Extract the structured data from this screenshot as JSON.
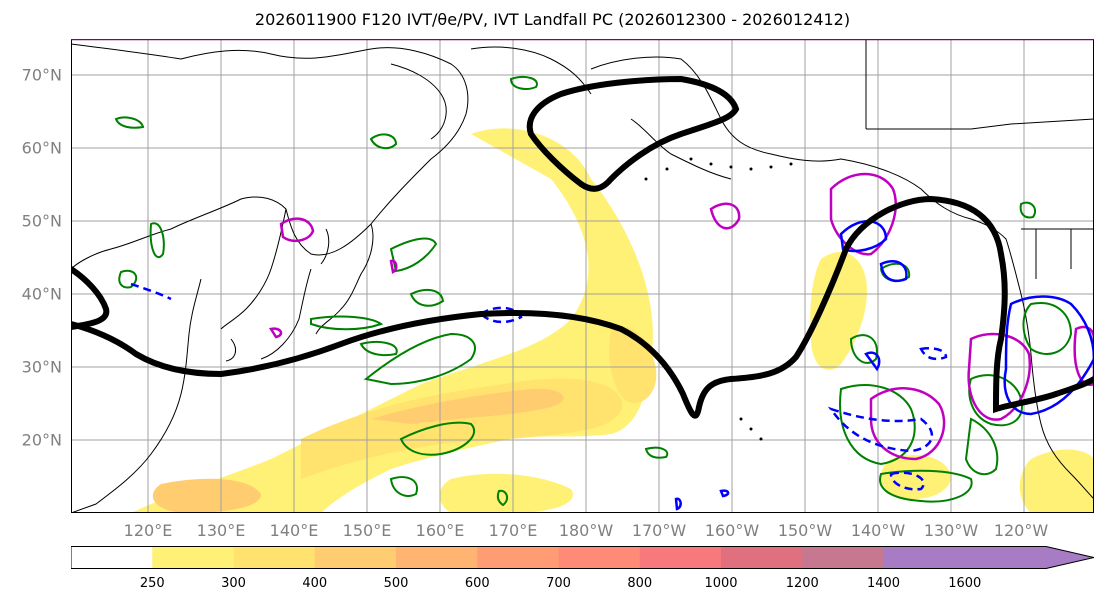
{
  "title": "2026011900 F120 IVT/θe/PV, IVT Landfall PC (2026012300 - 2026012412)",
  "lat_labels": [
    "70°N",
    "60°N",
    "50°N",
    "40°N",
    "30°N",
    "20°N"
  ],
  "lon_labels": [
    "120°E",
    "130°E",
    "140°E",
    "150°E",
    "160°E",
    "170°E",
    "180°W",
    "170°W",
    "160°W",
    "150°W",
    "140°W",
    "130°W",
    "120°W"
  ],
  "colorbar": {
    "levels": [
      "250",
      "300",
      "400",
      "500",
      "600",
      "700",
      "800",
      "1000",
      "1200",
      "1400",
      "1600"
    ],
    "colors": [
      "#ffffff",
      "#fff176",
      "#ffe36e",
      "#ffcc70",
      "#ffb472",
      "#ff9c74",
      "#ff8a78",
      "#f7797c",
      "#e0707e",
      "#c57890",
      "#a77cc4"
    ]
  },
  "colors": {
    "theta_e": "#008000",
    "pv_pos": "#c000c0",
    "pv_neg": "#0000ff",
    "landfall_pc": "#000000",
    "coast": "#000000",
    "grid": "#a0a0a0"
  }
}
